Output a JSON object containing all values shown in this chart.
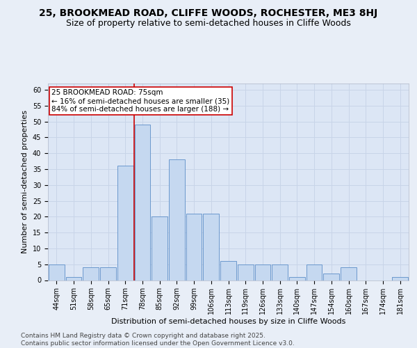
{
  "title_line1": "25, BROOKMEAD ROAD, CLIFFE WOODS, ROCHESTER, ME3 8HJ",
  "title_line2": "Size of property relative to semi-detached houses in Cliffe Woods",
  "xlabel": "Distribution of semi-detached houses by size in Cliffe Woods",
  "ylabel": "Number of semi-detached properties",
  "categories": [
    "44sqm",
    "51sqm",
    "58sqm",
    "65sqm",
    "71sqm",
    "78sqm",
    "85sqm",
    "92sqm",
    "99sqm",
    "106sqm",
    "113sqm",
    "119sqm",
    "126sqm",
    "133sqm",
    "140sqm",
    "147sqm",
    "154sqm",
    "160sqm",
    "167sqm",
    "174sqm",
    "181sqm"
  ],
  "values": [
    5,
    1,
    4,
    4,
    36,
    49,
    20,
    38,
    21,
    21,
    6,
    5,
    5,
    5,
    1,
    5,
    2,
    4,
    0,
    0,
    1
  ],
  "bar_color": "#c5d8f0",
  "bar_edge_color": "#5b8dc8",
  "bg_color": "#e8eef7",
  "plot_bg_color": "#dce6f5",
  "grid_color": "#c8d4e8",
  "vline_color": "#cc0000",
  "vline_pos": 4.5,
  "annotation_text": "25 BROOKMEAD ROAD: 75sqm\n← 16% of semi-detached houses are smaller (35)\n84% of semi-detached houses are larger (188) →",
  "annotation_box_color": "#cc0000",
  "ylim": [
    0,
    62
  ],
  "yticks": [
    0,
    5,
    10,
    15,
    20,
    25,
    30,
    35,
    40,
    45,
    50,
    55,
    60
  ],
  "footer": "Contains HM Land Registry data © Crown copyright and database right 2025.\nContains public sector information licensed under the Open Government Licence v3.0.",
  "title_fontsize": 10,
  "subtitle_fontsize": 9,
  "axis_label_fontsize": 8,
  "tick_fontsize": 7,
  "annotation_fontsize": 7.5,
  "footer_fontsize": 6.5
}
